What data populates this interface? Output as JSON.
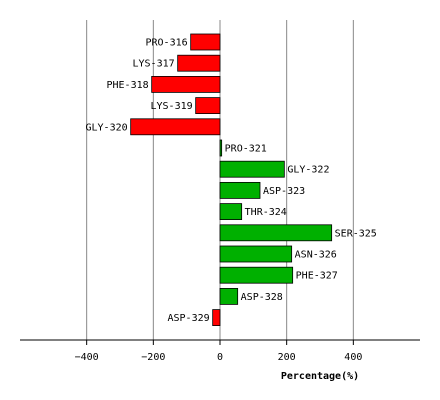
{
  "chart_data": {
    "type": "bar",
    "orientation": "horizontal",
    "categories": [
      "PRO-316",
      "LYS-317",
      "PHE-318",
      "LYS-319",
      "GLY-320",
      "PRO-321",
      "GLY-322",
      "ASP-323",
      "THR-324",
      "SER-325",
      "ASN-326",
      "PHE-327",
      "ASP-328",
      "ASP-329"
    ],
    "values": [
      -88,
      -127,
      -205,
      -73,
      -268,
      5,
      193,
      120,
      65,
      335,
      215,
      218,
      53,
      -22
    ],
    "xlabel": "Percentage(%)",
    "xlim": [
      -600,
      600
    ],
    "xticks": [
      -400,
      -200,
      0,
      200,
      400
    ],
    "grid": true,
    "colors": {
      "negative": "#ff0000",
      "positive": "#00b000",
      "grid": "#888888",
      "outline": "#000000"
    }
  }
}
